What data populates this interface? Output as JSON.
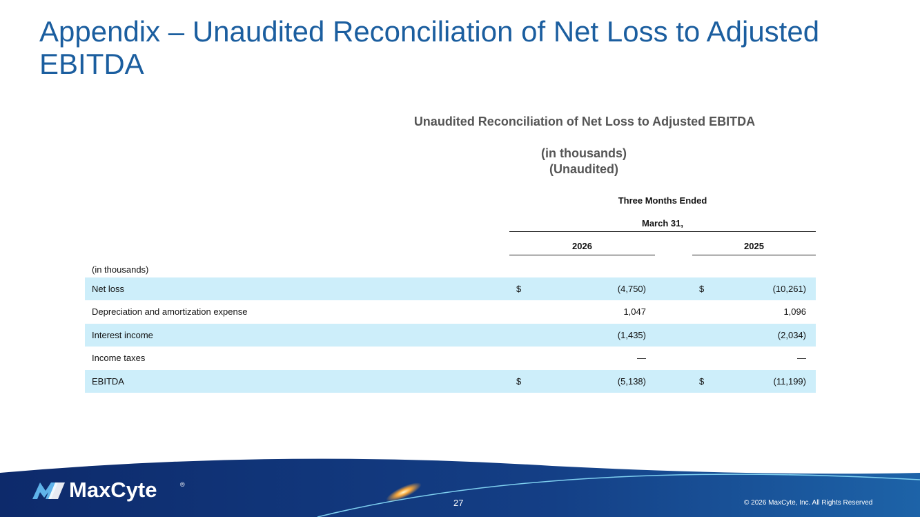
{
  "title": "Appendix – Unaudited Reconciliation of Net Loss to Adjusted EBITDA",
  "table": {
    "title": "Unaudited Reconciliation of Net Loss to Adjusted EBITDA",
    "subtitle": [
      "(in thousands)",
      "(Unaudited)"
    ],
    "period_header": "Three Months Ended",
    "period_subheader": "March 31,",
    "columns": [
      "2026",
      "2025"
    ],
    "units_label": "(in thousands)",
    "rows": [
      {
        "label": "Net loss",
        "cells": [
          {
            "currency": "$",
            "value": "(4,750)"
          },
          {
            "currency": "$",
            "value": "(10,261)"
          }
        ]
      },
      {
        "label": "Depreciation and amortization expense",
        "cells": [
          {
            "value": "1,047"
          },
          {
            "value": "1,096"
          }
        ]
      },
      {
        "label": "Interest income",
        "cells": [
          {
            "value": "(1,435)"
          },
          {
            "value": "(2,034)"
          }
        ]
      },
      {
        "label": "Income taxes",
        "cells": [
          {
            "value": "—"
          },
          {
            "value": "—"
          }
        ]
      },
      {
        "label": "EBITDA",
        "cells": [
          {
            "currency": "$",
            "value": "(5,138)"
          },
          {
            "currency": "$",
            "value": "(11,199)"
          }
        ]
      }
    ]
  },
  "footer": {
    "logo": "MaxCyte",
    "registered": "®",
    "page": "27",
    "copyright": "© 2026 MaxCyte, Inc. All Rights Reserved"
  }
}
